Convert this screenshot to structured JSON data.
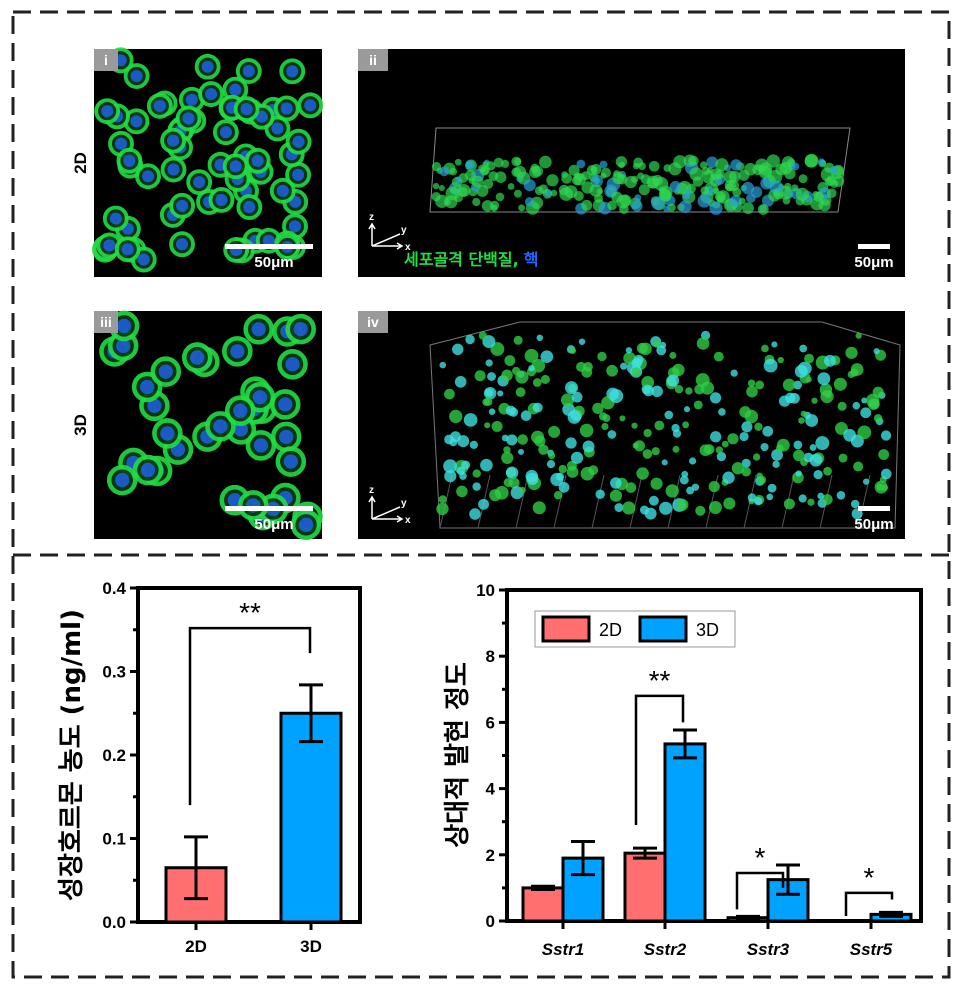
{
  "panels": {
    "row_labels": [
      "2D",
      "3D"
    ],
    "tags": [
      "i",
      "ii",
      "iii",
      "iv"
    ],
    "scale_bar": "50μm",
    "stain_legend": {
      "cytoskeleton": "세포골격 단백질,",
      "nucleus": "핵"
    },
    "axes_labels": {
      "z": "z",
      "y": "y",
      "x": "x"
    },
    "colors": {
      "cytoskeleton": "#22dd44",
      "nucleus": "#2266ff",
      "background": "#000000"
    }
  },
  "chart_data": [
    {
      "type": "bar",
      "categories": [
        "2D",
        "3D"
      ],
      "values": [
        0.065,
        0.25
      ],
      "errors": [
        0.037,
        0.034
      ],
      "colors": [
        "#ff6f6f",
        "#00a2ff"
      ],
      "ylabel": "성장호르몬 농도 (ng/ml)",
      "ylim": [
        0,
        0.4
      ],
      "yticks": [
        "0.0",
        "0.1",
        "0.2",
        "0.3",
        "0.4"
      ],
      "significance": [
        {
          "between": [
            "2D",
            "3D"
          ],
          "label": "**"
        }
      ],
      "grid": false
    },
    {
      "type": "bar",
      "categories": [
        "Sstr1",
        "Sstr2",
        "Sstr3",
        "Sstr5"
      ],
      "series": [
        {
          "name": "2D",
          "color": "#ff6f6f",
          "values": [
            1.0,
            2.05,
            0.1,
            0.01
          ],
          "errors": [
            0.05,
            0.15,
            0.04,
            0.0
          ]
        },
        {
          "name": "3D",
          "color": "#00a2ff",
          "values": [
            1.9,
            5.35,
            1.25,
            0.2
          ],
          "errors": [
            0.5,
            0.42,
            0.44,
            0.06
          ]
        }
      ],
      "ylabel": "상대적 발현 정도",
      "ylim": [
        0,
        10
      ],
      "yticks": [
        "0",
        "2",
        "4",
        "6",
        "8",
        "10"
      ],
      "significance": [
        {
          "category": "Sstr2",
          "label": "**"
        },
        {
          "category": "Sstr3",
          "label": "*"
        },
        {
          "category": "Sstr5",
          "label": "*"
        }
      ],
      "legend": "top-left",
      "grid": false
    }
  ]
}
